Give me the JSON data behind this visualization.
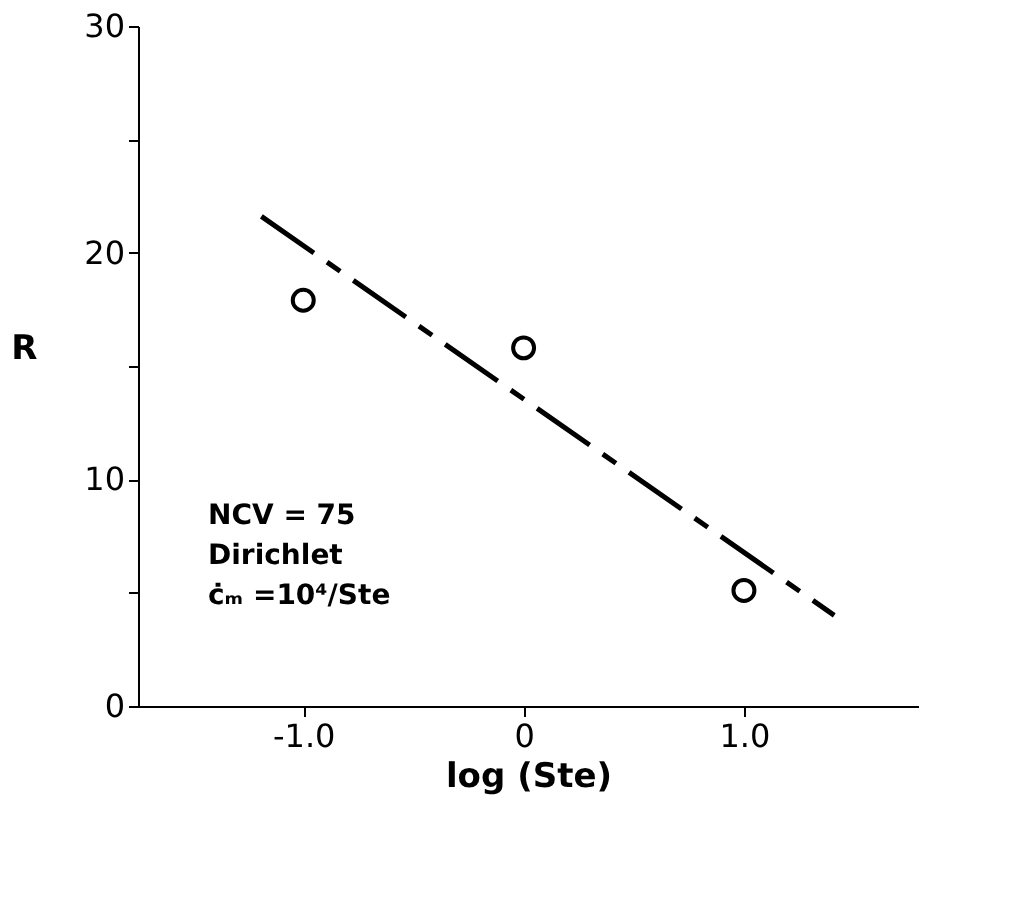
{
  "chart_data": {
    "type": "scatter",
    "xlabel": "log (Ste)",
    "ylabel": "R",
    "xlim": [
      -1.75,
      1.79
    ],
    "ylim": [
      0,
      30
    ],
    "xticks": [
      {
        "value": -1,
        "label": "-1.0"
      },
      0,
      {
        "value": 1,
        "label": "1.0"
      }
    ],
    "yticks": [
      0,
      {
        "value": 5,
        "label": null
      },
      10,
      {
        "value": 15,
        "label": null
      },
      20,
      {
        "value": 25,
        "label": null
      },
      30
    ],
    "grid": false,
    "series": [
      {
        "color": "#000000",
        "marker": "circle",
        "x": [
          -1,
          0,
          1
        ],
        "values": [
          17.9,
          15.8,
          5.1
        ]
      },
      {
        "type": "line",
        "color": "#000000",
        "line_style": "dashed",
        "x": [
          -1.19,
          1.41
        ],
        "values": [
          21.6,
          4.0
        ]
      }
    ],
    "annotations": [
      "NCV = 75",
      "Dirichlet",
      "ċₘ =10⁴/Ste"
    ]
  }
}
